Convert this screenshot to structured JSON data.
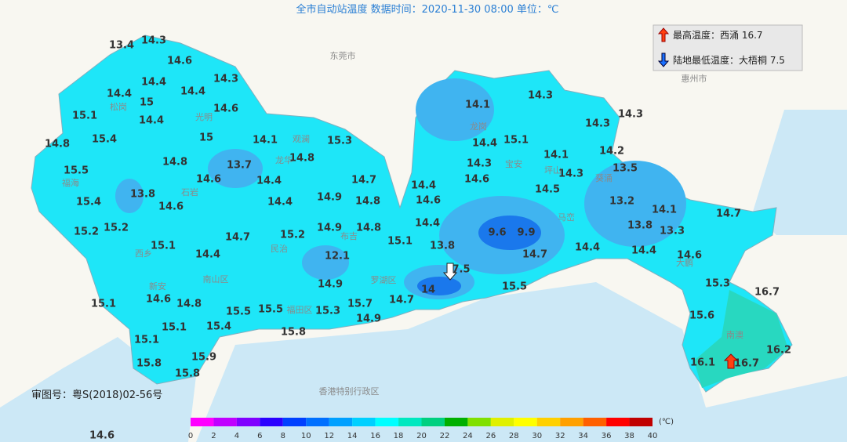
{
  "title": "全市自动站温度  数据时间：2020-11-30 08:00  单位：℃",
  "extremes": {
    "max": "最高温度：西涌 16.7",
    "min": "陆地最低温度：大梧桐 7.5"
  },
  "approval": "审图号：粤S(2018)02-56号",
  "places": [
    "东莞市",
    "惠州市",
    "香港特别行政区",
    "南山区",
    "福田区",
    "罗湖区",
    "宝安",
    "龙岗",
    "坪山",
    "大鹏",
    "光明",
    "龙华",
    "西乡",
    "新安",
    "松岗",
    "福海",
    "石岩",
    "观澜",
    "民治",
    "布吉",
    "马峦",
    "葵涌",
    "南澳"
  ],
  "stations": [
    13.4,
    14.3,
    14.6,
    14.4,
    14.3,
    14.4,
    14.4,
    15,
    14.6,
    14.4,
    15.1,
    14.8,
    15.4,
    15,
    14.1,
    15.3,
    14.8,
    13.7,
    14.8,
    15.5,
    14.6,
    14.4,
    14.7,
    13.8,
    15.4,
    14.6,
    14.4,
    14.9,
    14.8,
    15.2,
    15.2,
    14.7,
    15.2,
    14.9,
    14.8,
    15.1,
    14.4,
    12.1,
    15.1,
    14.9,
    15.1,
    14.6,
    14.8,
    15.5,
    15.5,
    15.3,
    15.7,
    14.9,
    14.7,
    15.1,
    15.4,
    15.8,
    15.1,
    15.9,
    15.8,
    15.8,
    14.6,
    14.1,
    14.3,
    14.4,
    15.1,
    14.3,
    14.6,
    14.1,
    14.3,
    14.2,
    14.3,
    14.3,
    13.5,
    14.4,
    14.6,
    14.5,
    13.2,
    14.1,
    14.7,
    14.4,
    9.6,
    9.9,
    13.8,
    13.3,
    13.8,
    14.7,
    14.4,
    14.4,
    14.6,
    7.5,
    14,
    15.5,
    15.3,
    16.7,
    15.6,
    16.2,
    16.1,
    16.7
  ],
  "scale": {
    "unit": "(℃)",
    "ticks": [
      0,
      2,
      4,
      6,
      8,
      10,
      12,
      14,
      16,
      18,
      20,
      22,
      24,
      26,
      28,
      30,
      32,
      34,
      36,
      38,
      40
    ],
    "colors": [
      "#ff00ff",
      "#c000ff",
      "#8000ff",
      "#2a00ff",
      "#0040ff",
      "#0070ff",
      "#00a0ff",
      "#00d0ff",
      "#00ffff",
      "#00e8c0",
      "#00d080",
      "#00b000",
      "#80e000",
      "#e0f000",
      "#ffff00",
      "#ffd000",
      "#ffa000",
      "#ff6000",
      "#ff0000",
      "#c00000"
    ]
  }
}
